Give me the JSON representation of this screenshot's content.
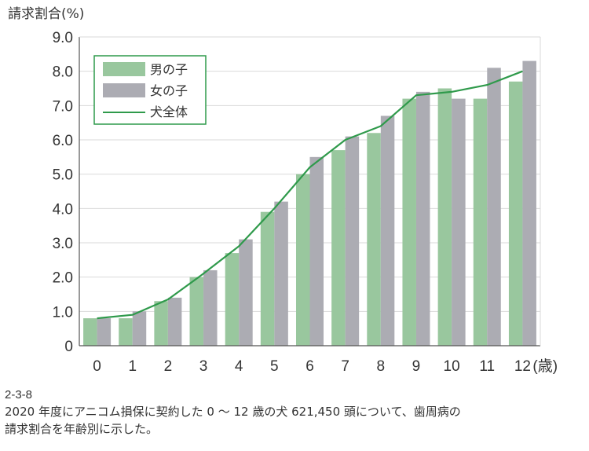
{
  "chart_data": {
    "type": "bar",
    "ylabel": "請求割合(%)",
    "xunit": "(歳)",
    "categories": [
      "0",
      "1",
      "2",
      "3",
      "4",
      "5",
      "6",
      "7",
      "8",
      "9",
      "10",
      "11",
      "12"
    ],
    "ylim": [
      0,
      9
    ],
    "yticks": [
      "0",
      "1.0",
      "2.0",
      "3.0",
      "4.0",
      "5.0",
      "6.0",
      "7.0",
      "8.0",
      "9.0"
    ],
    "grid": true,
    "legend_position": "top-left",
    "series": [
      {
        "name": "男の子",
        "kind": "bar",
        "color": "#99c79e",
        "values": [
          0.8,
          0.8,
          1.3,
          2.0,
          2.7,
          3.9,
          5.0,
          5.7,
          6.2,
          7.2,
          7.5,
          7.2,
          7.7
        ]
      },
      {
        "name": "女の子",
        "kind": "bar",
        "color": "#acacb3",
        "values": [
          0.8,
          1.0,
          1.4,
          2.2,
          3.1,
          4.2,
          5.5,
          6.1,
          6.7,
          7.4,
          7.2,
          8.1,
          8.3
        ]
      },
      {
        "name": "犬全体",
        "kind": "line",
        "color": "#2f9a4b",
        "values": [
          0.8,
          0.9,
          1.35,
          2.1,
          2.9,
          4.0,
          5.2,
          6.0,
          6.4,
          7.3,
          7.4,
          7.6,
          8.0
        ]
      }
    ]
  },
  "caption": {
    "figure_id": "2-3-8",
    "line1": "2020 年度にアニコム損保に契約した 0 〜 12 歳の犬 621,450 頭について、歯周病の",
    "line2": "請求割合を年齢別に示した。"
  }
}
